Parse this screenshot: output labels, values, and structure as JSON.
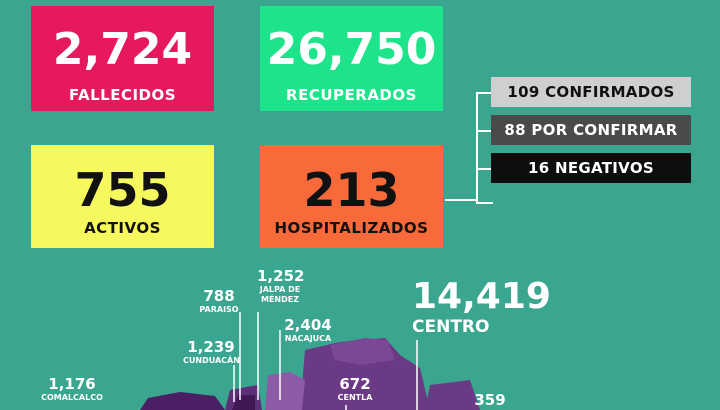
{
  "stats": {
    "fallecidos": {
      "value": "2,724",
      "label": "FALLECIDOS",
      "color": "#e6195e"
    },
    "recuperados": {
      "value": "26,750",
      "label": "RECUPERADOS",
      "color": "#1de38b"
    },
    "activos": {
      "value": "755",
      "label": "ACTIVOS",
      "color": "#f6f95d"
    },
    "hospitalizados": {
      "value": "213",
      "label": "HOSPITALIZADOS",
      "color": "#f96a3b"
    }
  },
  "hospital_breakdown": [
    {
      "text": "109 CONFIRMADOS"
    },
    {
      "text": "88 POR CONFIRMAR"
    },
    {
      "text": "16  NEGATIVOS"
    }
  ],
  "municipalities": {
    "paraiso": {
      "value": "788",
      "name": "PARAISO"
    },
    "jalpa": {
      "value": "1,252",
      "name_line1": "JALPA DE",
      "name_line2": "MÉNDEZ"
    },
    "nacajuca": {
      "value": "2,404",
      "name": "NACAJUCA"
    },
    "cunduacan": {
      "value": "1,239",
      "name": "CUNDUACÁN"
    },
    "comalcalco": {
      "value": "1,176",
      "name": "COMALCALCO"
    },
    "centla": {
      "value": "672",
      "name": "CENTLA"
    },
    "centro": {
      "value": "14,419",
      "name": "CENTRO"
    },
    "extra": {
      "value": "359"
    }
  },
  "colors": {
    "background": "#3aa690",
    "map_dark": "#4b1f63",
    "map_mid": "#6a3a85",
    "map_light": "#8d5aa6"
  }
}
